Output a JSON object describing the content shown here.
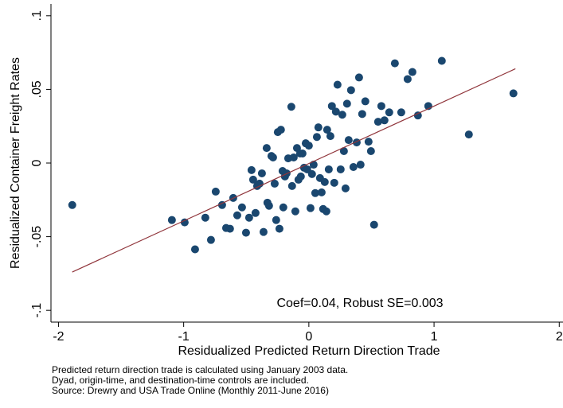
{
  "chart_data": {
    "type": "scatter",
    "x_label": "Residualized Predicted Return Direction Trade",
    "y_label": "Residualized Container Freight Rates",
    "annotation": "Coef=0.04, Robust SE=0.003",
    "notes": [
      "Predicted return direction trade is calculated using January 2003 data.",
      "Dyad, origin-time, and destination-time controls are included.",
      "Source: Drewry and USA Trade Online (Monthly 2011-June 2016)"
    ],
    "xlim": [
      -2.06,
      2.03
    ],
    "ylim": [
      -0.108,
      0.108
    ],
    "xticks": [
      -2,
      -1,
      0,
      1,
      2
    ],
    "yticks": [
      {
        "value": -0.1,
        "label": "-.1"
      },
      {
        "value": -0.05,
        "label": "-.05"
      },
      0,
      {
        "value": 0.05,
        "label": ".05"
      },
      {
        "value": 0.1,
        "label": ".1"
      }
    ],
    "grid": false,
    "points": {
      "color": "#1a476f",
      "x": [
        -1.89,
        -1.094,
        -0.992,
        -0.909,
        -0.827,
        -0.782,
        -0.744,
        -0.693,
        -0.661,
        -0.63,
        -0.604,
        -0.572,
        -0.534,
        -0.502,
        -0.477,
        -0.458,
        -0.445,
        -0.426,
        -0.413,
        -0.394,
        -0.375,
        -0.362,
        -0.337,
        -0.331,
        -0.318,
        -0.299,
        -0.286,
        -0.273,
        -0.261,
        -0.248,
        -0.235,
        -0.223,
        -0.21,
        -0.204,
        -0.191,
        -0.178,
        -0.165,
        -0.14,
        -0.134,
        -0.121,
        -0.108,
        -0.095,
        -0.083,
        -0.07,
        -0.064,
        -0.051,
        -0.038,
        -0.025,
        -0.013,
        0,
        0.013,
        0.025,
        0.038,
        0.051,
        0.064,
        0.076,
        0.089,
        0.102,
        0.114,
        0.127,
        0.14,
        0.146,
        0.159,
        0.172,
        0.184,
        0.203,
        0.216,
        0.229,
        0.254,
        0.267,
        0.28,
        0.293,
        0.305,
        0.318,
        0.337,
        0.356,
        0.382,
        0.401,
        0.413,
        0.426,
        0.451,
        0.477,
        0.496,
        0.521,
        0.553,
        0.579,
        0.604,
        0.642,
        0.687,
        0.738,
        0.789,
        0.827,
        0.871,
        0.954,
        1.062,
        1.278,
        1.634
      ],
      "y": [
        -0.0285,
        -0.0387,
        -0.0403,
        -0.0586,
        -0.0371,
        -0.0522,
        -0.0194,
        -0.0285,
        -0.0441,
        -0.0446,
        -0.0237,
        -0.0355,
        -0.0301,
        -0.0473,
        -0.0371,
        -0.0048,
        -0.0113,
        -0.0339,
        -0.0156,
        -0.014,
        -0.007,
        -0.0468,
        0.0102,
        -0.0269,
        -0.029,
        0.0048,
        0.0038,
        -0.014,
        -0.0387,
        0.021,
        -0.0446,
        0.0226,
        -0.0054,
        -0.0301,
        -0.0091,
        -0.007,
        0.0032,
        0.0382,
        -0.0156,
        0.0038,
        -0.0328,
        0.0102,
        -0.0113,
        0.0065,
        -0.0091,
        0.0065,
        -0.0032,
        0.0134,
        -0.0043,
        0.0118,
        -0.0306,
        -0.0075,
        -0.0011,
        -0.0204,
        0.0177,
        0.0242,
        -0.0102,
        -0.0199,
        -0.0312,
        -0.0129,
        -0.0328,
        0.0226,
        -0.0043,
        0.0183,
        0.0387,
        -0.0134,
        0.0349,
        0.0532,
        -0.0043,
        0.0328,
        0.0081,
        -0.0172,
        0.0403,
        0.0156,
        0.0495,
        -0.0027,
        0.014,
        0.0581,
        -0.0011,
        0.0333,
        0.0419,
        0.0145,
        0.0081,
        -0.0419,
        0.028,
        0.0387,
        0.029,
        0.0344,
        0.0677,
        0.0344,
        0.057,
        0.0618,
        0.0323,
        0.0387,
        0.0694,
        0.0194,
        0.0473
      ]
    },
    "fit_line": {
      "color": "#90353b",
      "x": [
        -1.89,
        1.65
      ],
      "y": [
        -0.074,
        0.064
      ]
    }
  }
}
